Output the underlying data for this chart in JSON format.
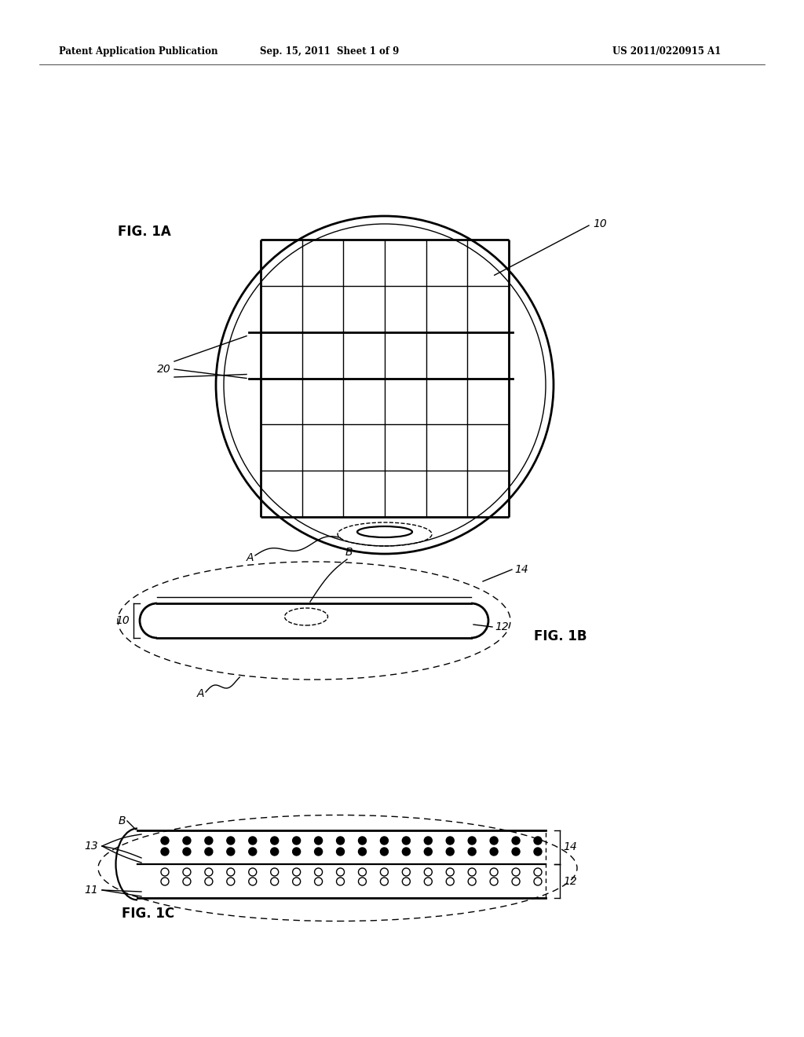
{
  "bg_color": "#ffffff",
  "line_color": "#000000",
  "header_left": "Patent Application Publication",
  "header_mid": "Sep. 15, 2011  Sheet 1 of 9",
  "header_right": "US 2011/0220915 A1",
  "fig1a_label": "FIG. 1A",
  "fig1b_label": "FIG. 1B",
  "fig1c_label": "FIG. 1C",
  "label_10a": "10",
  "label_20": "20",
  "label_A_1a": "A",
  "label_10b": "10",
  "label_12b": "12",
  "label_14b": "14",
  "label_B_1b": "B",
  "label_A_1b": "A",
  "label_B_1c": "B",
  "label_11": "11",
  "label_12c": "12",
  "label_13": "13",
  "label_14c": "14"
}
